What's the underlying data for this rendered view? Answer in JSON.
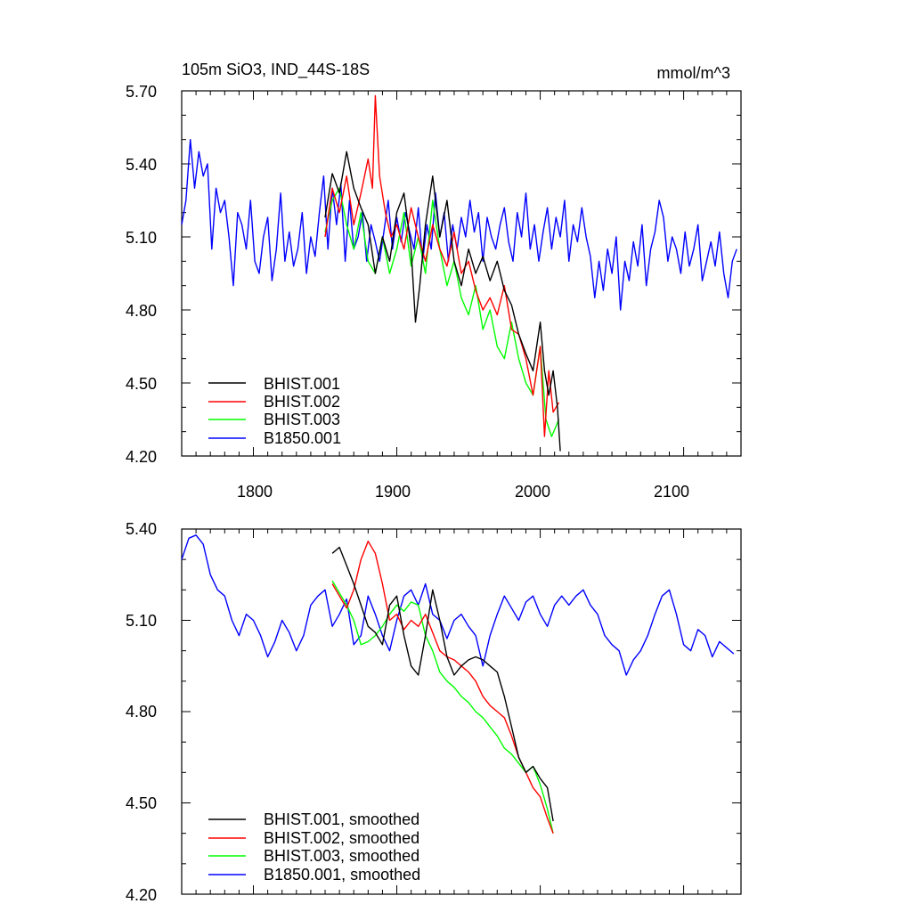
{
  "chart_data": [
    {
      "type": "line",
      "title": "105m SiO3, IND_44S-18S",
      "units_label": "mmol/m^3",
      "xlim": [
        1750,
        2140
      ],
      "ylim": [
        4.2,
        5.7
      ],
      "x_tick_labels": [
        "1800",
        "1900",
        "2000",
        "2100"
      ],
      "y_tick_labels": [
        "5.70",
        "5.40",
        "5.10",
        "4.80",
        "4.50",
        "4.20"
      ],
      "legend_position": "bottom-left",
      "series": [
        {
          "name": "BHIST.001",
          "color": "#000000",
          "x": [
            1850,
            1855,
            1860,
            1865,
            1870,
            1875,
            1880,
            1885,
            1890,
            1895,
            1900,
            1905,
            1910,
            1913,
            1916,
            1920,
            1925,
            1930,
            1935,
            1940,
            1945,
            1950,
            1955,
            1960,
            1965,
            1970,
            1975,
            1980,
            1985,
            1990,
            1995,
            2000,
            2003,
            2006,
            2009,
            2012,
            2014
          ],
          "y": [
            5.18,
            5.36,
            5.28,
            5.45,
            5.3,
            5.22,
            5.15,
            4.95,
            5.1,
            5.0,
            5.2,
            5.28,
            5.05,
            4.75,
            4.9,
            5.15,
            5.35,
            5.1,
            5.25,
            5.0,
            4.9,
            5.05,
            4.95,
            5.02,
            4.92,
            5.0,
            4.88,
            4.82,
            4.7,
            4.62,
            4.55,
            4.75,
            4.55,
            4.45,
            4.55,
            4.4,
            4.22
          ]
        },
        {
          "name": "BHIST.002",
          "color": "#ff0000",
          "x": [
            1850,
            1855,
            1860,
            1865,
            1870,
            1875,
            1880,
            1883,
            1885,
            1888,
            1892,
            1896,
            1900,
            1905,
            1910,
            1915,
            1920,
            1925,
            1930,
            1935,
            1940,
            1945,
            1950,
            1955,
            1960,
            1965,
            1970,
            1975,
            1980,
            1985,
            1990,
            1995,
            2000,
            2003,
            2006,
            2009,
            2013
          ],
          "y": [
            5.1,
            5.3,
            5.2,
            5.35,
            5.15,
            5.28,
            5.42,
            5.3,
            5.68,
            5.35,
            5.2,
            5.1,
            5.15,
            5.05,
            5.22,
            5.1,
            5.0,
            5.15,
            5.05,
            4.98,
            5.12,
            4.95,
            5.0,
            4.88,
            4.8,
            4.85,
            4.78,
            4.9,
            4.72,
            4.7,
            4.6,
            4.45,
            4.65,
            4.28,
            4.55,
            4.38,
            4.42
          ]
        },
        {
          "name": "BHIST.003",
          "color": "#00ff00",
          "x": [
            1850,
            1855,
            1860,
            1865,
            1870,
            1875,
            1880,
            1885,
            1890,
            1895,
            1900,
            1905,
            1910,
            1915,
            1920,
            1925,
            1930,
            1935,
            1940,
            1945,
            1950,
            1955,
            1960,
            1965,
            1970,
            1975,
            1980,
            1985,
            1990,
            1995,
            2000,
            2004,
            2008,
            2013
          ],
          "y": [
            5.12,
            5.25,
            5.3,
            5.15,
            5.05,
            5.2,
            5.0,
            4.95,
            5.1,
            4.95,
            5.05,
            5.2,
            4.98,
            5.1,
            4.95,
            5.25,
            5.05,
            4.9,
            5.0,
            4.85,
            4.78,
            4.9,
            4.72,
            4.8,
            4.65,
            4.6,
            4.75,
            4.6,
            4.5,
            4.45,
            4.65,
            4.35,
            4.28,
            4.35
          ]
        },
        {
          "name": "B1850.001",
          "color": "#0000ff",
          "x": [
            1750,
            1753,
            1756,
            1759,
            1762,
            1765,
            1768,
            1771,
            1774,
            1777,
            1780,
            1783,
            1786,
            1789,
            1792,
            1795,
            1798,
            1801,
            1804,
            1807,
            1810,
            1813,
            1816,
            1819,
            1822,
            1825,
            1828,
            1831,
            1834,
            1837,
            1840,
            1843,
            1846,
            1849,
            1852,
            1855,
            1858,
            1861,
            1864,
            1867,
            1870,
            1873,
            1876,
            1879,
            1882,
            1885,
            1888,
            1891,
            1894,
            1897,
            1900,
            1903,
            1906,
            1909,
            1912,
            1915,
            1918,
            1921,
            1924,
            1927,
            1930,
            1933,
            1936,
            1939,
            1942,
            1945,
            1948,
            1951,
            1954,
            1957,
            1960,
            1963,
            1966,
            1969,
            1972,
            1975,
            1978,
            1981,
            1984,
            1987,
            1990,
            1993,
            1996,
            1999,
            2002,
            2005,
            2008,
            2011,
            2014,
            2017,
            2020,
            2023,
            2026,
            2029,
            2032,
            2035,
            2038,
            2041,
            2044,
            2047,
            2050,
            2053,
            2056,
            2059,
            2062,
            2065,
            2068,
            2071,
            2074,
            2077,
            2080,
            2083,
            2086,
            2089,
            2092,
            2095,
            2098,
            2101,
            2104,
            2107,
            2110,
            2113,
            2116,
            2119,
            2122,
            2125,
            2128,
            2131,
            2134,
            2137
          ],
          "y": [
            5.15,
            5.25,
            5.5,
            5.3,
            5.45,
            5.35,
            5.4,
            5.05,
            5.3,
            5.2,
            5.25,
            5.1,
            4.9,
            5.2,
            5.15,
            5.05,
            5.25,
            5.0,
            4.95,
            5.1,
            5.18,
            4.92,
            5.05,
            5.28,
            5.0,
            5.12,
            4.98,
            5.05,
            5.2,
            4.95,
            5.1,
            5.02,
            5.2,
            5.35,
            5.05,
            5.3,
            5.15,
            5.32,
            5.0,
            5.25,
            5.05,
            5.1,
            5.2,
            5.0,
            5.15,
            5.08,
            5.0,
            5.12,
            5.25,
            5.05,
            5.18,
            5.08,
            5.2,
            5.12,
            5.05,
            5.22,
            5.0,
            5.15,
            5.05,
            5.28,
            5.1,
            5.2,
            5.0,
            5.15,
            5.05,
            5.18,
            5.1,
            5.25,
            5.12,
            5.2,
            5.0,
            5.18,
            5.1,
            5.05,
            5.15,
            5.22,
            5.08,
            5.0,
            5.2,
            5.1,
            5.28,
            5.05,
            5.15,
            5.0,
            5.12,
            5.22,
            5.05,
            5.18,
            5.1,
            5.25,
            5.0,
            5.15,
            5.08,
            5.22,
            5.1,
            5.02,
            4.85,
            5.0,
            4.88,
            5.05,
            4.95,
            5.1,
            4.8,
            5.0,
            4.92,
            5.08,
            4.98,
            5.15,
            4.9,
            5.05,
            5.12,
            5.25,
            5.18,
            5.0,
            5.1,
            5.05,
            4.95,
            5.12,
            4.98,
            5.05,
            5.15,
            4.92,
            5.0,
            5.08,
            4.98,
            5.12,
            4.95,
            4.85,
            5.0,
            5.05
          ]
        }
      ]
    },
    {
      "type": "line",
      "title": "",
      "xlim": [
        1750,
        2140
      ],
      "ylim": [
        4.2,
        5.4
      ],
      "y_tick_labels": [
        "5.40",
        "5.10",
        "4.80",
        "4.50",
        "4.20"
      ],
      "legend_position": "bottom-left",
      "series": [
        {
          "name": "BHIST.001, smoothed",
          "color": "#000000",
          "x": [
            1855,
            1860,
            1865,
            1870,
            1875,
            1880,
            1885,
            1890,
            1895,
            1900,
            1905,
            1910,
            1915,
            1920,
            1925,
            1930,
            1935,
            1940,
            1945,
            1950,
            1955,
            1960,
            1965,
            1970,
            1975,
            1980,
            1985,
            1990,
            1995,
            2000,
            2005,
            2009
          ],
          "y": [
            5.32,
            5.34,
            5.28,
            5.22,
            5.15,
            5.08,
            5.06,
            5.02,
            5.15,
            5.18,
            5.05,
            4.95,
            4.92,
            5.05,
            5.2,
            5.1,
            4.98,
            4.92,
            4.95,
            4.97,
            4.98,
            4.97,
            4.95,
            4.93,
            4.85,
            4.75,
            4.65,
            4.6,
            4.62,
            4.58,
            4.55,
            4.44
          ]
        },
        {
          "name": "BHIST.002, smoothed",
          "color": "#ff0000",
          "x": [
            1855,
            1860,
            1865,
            1870,
            1875,
            1880,
            1885,
            1890,
            1895,
            1900,
            1905,
            1910,
            1915,
            1920,
            1925,
            1930,
            1935,
            1940,
            1945,
            1950,
            1955,
            1960,
            1965,
            1970,
            1975,
            1980,
            1985,
            1990,
            1995,
            2000,
            2005,
            2009
          ],
          "y": [
            5.22,
            5.18,
            5.14,
            5.2,
            5.3,
            5.36,
            5.32,
            5.22,
            5.1,
            5.12,
            5.07,
            5.1,
            5.08,
            5.12,
            5.06,
            5.0,
            4.98,
            4.97,
            4.95,
            4.93,
            4.9,
            4.85,
            4.82,
            4.8,
            4.78,
            4.72,
            4.65,
            4.6,
            4.55,
            4.52,
            4.45,
            4.4
          ]
        },
        {
          "name": "BHIST.003, smoothed",
          "color": "#00ff00",
          "x": [
            1855,
            1860,
            1865,
            1870,
            1875,
            1880,
            1885,
            1890,
            1895,
            1900,
            1905,
            1910,
            1915,
            1920,
            1925,
            1930,
            1935,
            1940,
            1945,
            1950,
            1955,
            1960,
            1965,
            1970,
            1975,
            1980,
            1985,
            1990,
            1995,
            2000,
            2005,
            2009
          ],
          "y": [
            5.23,
            5.19,
            5.15,
            5.1,
            5.02,
            5.03,
            5.05,
            5.08,
            5.12,
            5.15,
            5.13,
            5.16,
            5.15,
            5.05,
            5.0,
            4.93,
            4.9,
            4.88,
            4.85,
            4.83,
            4.8,
            4.78,
            4.75,
            4.72,
            4.68,
            4.66,
            4.63,
            4.6,
            4.62,
            4.56,
            4.48,
            4.4
          ]
        },
        {
          "name": "B1850.001, smoothed",
          "color": "#0000ff",
          "x": [
            1750,
            1755,
            1760,
            1765,
            1770,
            1775,
            1780,
            1785,
            1790,
            1795,
            1800,
            1805,
            1810,
            1815,
            1820,
            1825,
            1830,
            1835,
            1840,
            1845,
            1850,
            1855,
            1860,
            1865,
            1870,
            1875,
            1880,
            1885,
            1890,
            1895,
            1900,
            1905,
            1910,
            1915,
            1920,
            1925,
            1930,
            1935,
            1940,
            1945,
            1950,
            1955,
            1960,
            1965,
            1970,
            1975,
            1980,
            1985,
            1990,
            1995,
            2000,
            2005,
            2010,
            2015,
            2020,
            2025,
            2030,
            2035,
            2040,
            2045,
            2050,
            2055,
            2060,
            2065,
            2070,
            2075,
            2080,
            2085,
            2090,
            2095,
            2100,
            2105,
            2110,
            2115,
            2120,
            2125,
            2130,
            2135
          ],
          "y": [
            5.3,
            5.37,
            5.38,
            5.35,
            5.25,
            5.2,
            5.18,
            5.1,
            5.05,
            5.12,
            5.1,
            5.05,
            4.98,
            5.03,
            5.1,
            5.06,
            5.0,
            5.05,
            5.15,
            5.18,
            5.2,
            5.08,
            5.12,
            5.17,
            5.02,
            5.05,
            5.18,
            5.12,
            5.05,
            5.0,
            5.1,
            5.18,
            5.2,
            5.15,
            5.22,
            5.12,
            5.1,
            5.04,
            5.1,
            5.12,
            5.08,
            5.05,
            4.95,
            5.05,
            5.12,
            5.18,
            5.14,
            5.1,
            5.16,
            5.18,
            5.12,
            5.08,
            5.15,
            5.18,
            5.15,
            5.18,
            5.2,
            5.15,
            5.12,
            5.05,
            5.02,
            5.0,
            4.92,
            4.97,
            5.0,
            5.05,
            5.12,
            5.18,
            5.2,
            5.12,
            5.02,
            5.0,
            5.07,
            5.05,
            4.98,
            5.03,
            5.01,
            4.99
          ]
        }
      ]
    }
  ]
}
